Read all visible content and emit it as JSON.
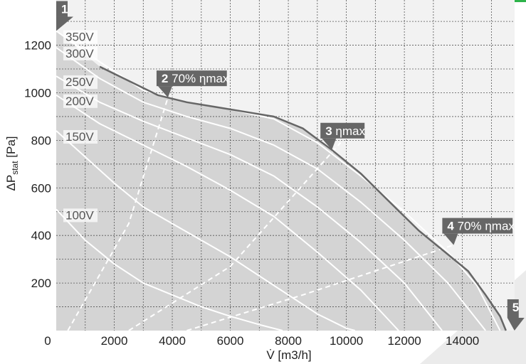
{
  "colors": {
    "accent_bar": "#2db34a",
    "plot_background": "#f2f2f2",
    "operating_area": "#d4d4d4",
    "envelope": "#666666",
    "grid": "#555555",
    "speed_curves": "#ffffff",
    "annotation_box": "#666666",
    "corner_decoration": "#ebebeb"
  },
  "chart_data": {
    "type": "line",
    "xlabel": "V̇ [m3/h]",
    "ylabel": "ΔPstat [Pa]",
    "ylabel_main": "ΔP",
    "ylabel_sub": "stat",
    "ylabel_unit": " [Pa]",
    "xlim": [
      0,
      15800
    ],
    "ylim": [
      0,
      1390
    ],
    "x_ticks": [
      0,
      2000,
      4000,
      6000,
      8000,
      10000,
      12000,
      14000
    ],
    "x_tick_labels": [
      "0",
      "2000",
      "4000",
      "6000",
      "8000",
      "10000",
      "12000",
      "14000"
    ],
    "y_ticks": [
      200,
      400,
      600,
      800,
      1000,
      1200
    ],
    "y_tick_labels": [
      "200",
      "400",
      "600",
      "800",
      "1000",
      "1200"
    ],
    "grid": true,
    "grid_step_x": 1000,
    "grid_step_y": 100,
    "envelope": {
      "x": [
        1500,
        2500,
        3500,
        4500,
        5500,
        6500,
        7500,
        8500,
        9500,
        10500,
        11500,
        12500,
        13500,
        14200,
        14800,
        15300,
        15500
      ],
      "y": [
        1110,
        1050,
        990,
        960,
        940,
        920,
        900,
        850,
        760,
        660,
        540,
        420,
        320,
        250,
        150,
        60,
        0
      ]
    },
    "series": [
      {
        "name": "350V",
        "x": [
          0,
          1500,
          3000,
          4500,
          6000,
          7500,
          9000,
          10500,
          12000,
          13500,
          14500,
          15300
        ],
        "y": [
          1260,
          1130,
          1010,
          960,
          930,
          890,
          790,
          650,
          500,
          330,
          190,
          0
        ]
      },
      {
        "name": "300V",
        "x": [
          0,
          1500,
          3000,
          4500,
          6000,
          7500,
          9000,
          10500,
          12000,
          13500,
          14800
        ],
        "y": [
          1190,
          1060,
          960,
          900,
          850,
          780,
          680,
          540,
          380,
          200,
          0
        ]
      },
      {
        "name": "250V",
        "x": [
          0,
          1500,
          3000,
          4500,
          6000,
          7500,
          9000,
          10500,
          12000,
          13300
        ],
        "y": [
          1070,
          960,
          880,
          810,
          740,
          650,
          520,
          370,
          200,
          0
        ]
      },
      {
        "name": "200V",
        "x": [
          0,
          1500,
          3000,
          4500,
          6000,
          7500,
          9000,
          10500,
          11800
        ],
        "y": [
          990,
          870,
          780,
          690,
          590,
          480,
          330,
          170,
          0
        ]
      },
      {
        "name": "150V",
        "x": [
          0,
          1000,
          2000,
          3000,
          4000,
          5000,
          6000,
          7000,
          8000,
          9000,
          10000,
          10300
        ],
        "y": [
          840,
          730,
          620,
          520,
          450,
          380,
          310,
          230,
          150,
          70,
          10,
          0
        ]
      },
      {
        "name": "100V",
        "x": [
          0,
          1000,
          2000,
          3000,
          4000,
          5000,
          6000,
          7000,
          7800
        ],
        "y": [
          510,
          380,
          280,
          200,
          150,
          100,
          60,
          25,
          0
        ]
      }
    ],
    "efficiency_lines": [
      {
        "name": "70% ηmax left",
        "x": [
          400,
          2500,
          3900
        ],
        "y": [
          0,
          450,
          1000
        ]
      },
      {
        "name": "ηmax",
        "x": [
          2500,
          6000,
          9800
        ],
        "y": [
          0,
          270,
          790
        ]
      },
      {
        "name": "70% ηmax right",
        "x": [
          4500,
          8500,
          13700
        ],
        "y": [
          0,
          150,
          360
        ]
      }
    ],
    "annotations": [
      {
        "num": "1",
        "text": "",
        "x": 0,
        "y": 1260
      },
      {
        "num": "2",
        "text": " 70% ηmax",
        "x": 3850,
        "y": 980
      },
      {
        "num": "3",
        "text": " ηmax",
        "x": 9500,
        "y": 760
      },
      {
        "num": "4",
        "text": " 70% ηmax",
        "x": 13700,
        "y": 360
      },
      {
        "num": "5",
        "text": "",
        "x": 15500,
        "y": 0
      }
    ]
  }
}
